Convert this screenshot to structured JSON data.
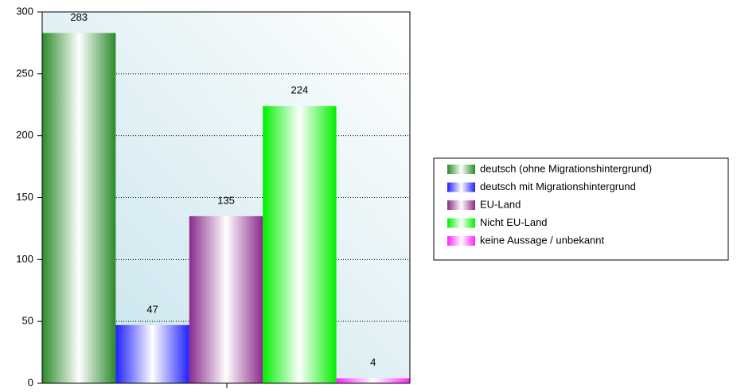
{
  "chart_data": {
    "type": "bar",
    "series": [
      {
        "name": "deutsch (ohne Migrationshintergrund)",
        "color": "#2a8a2a",
        "values": [
          283
        ]
      },
      {
        "name": "deutsch mit Migrationshintergrund",
        "color": "#2020ff",
        "values": [
          47
        ]
      },
      {
        "name": "EU-Land",
        "color": "#8a2a8a",
        "values": [
          135
        ]
      },
      {
        "name": "Nicht EU-Land",
        "color": "#00ee00",
        "values": [
          224
        ]
      },
      {
        "name": "keine Aussage / unbekannt",
        "color": "#ff22ff",
        "values": [
          4
        ]
      }
    ],
    "ylim": [
      0,
      300
    ],
    "yticks": [
      0,
      50,
      100,
      150,
      200,
      250,
      300
    ],
    "grid": true,
    "legend": "right"
  }
}
